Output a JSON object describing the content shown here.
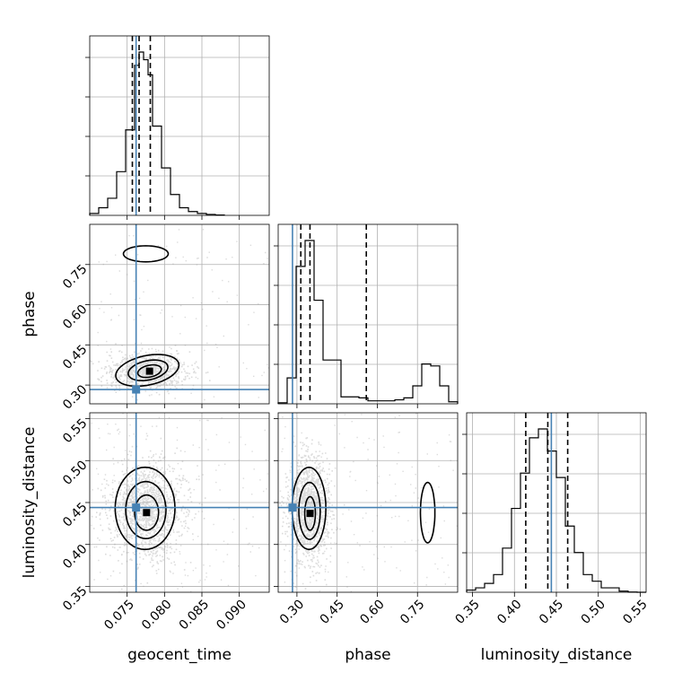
{
  "chart_data": {
    "type": "corner",
    "parameters": [
      "geocent_time",
      "phase",
      "luminosity_distance"
    ],
    "axis_labels": {
      "geocent_time": "geocent_time",
      "phase": "phase",
      "luminosity_distance": "luminosity_distance"
    },
    "ranges": {
      "geocent_time": [
        0.07,
        0.094
      ],
      "phase": [
        0.23,
        0.9
      ],
      "luminosity_distance": [
        0.343,
        0.557
      ]
    },
    "ticks": {
      "geocent_time": [
        0.075,
        0.08,
        0.085,
        0.09
      ],
      "phase": [
        0.3,
        0.45,
        0.6,
        0.75
      ],
      "luminosity_distance": [
        0.35,
        0.4,
        0.45,
        0.5,
        0.55
      ]
    },
    "tick_labels": {
      "geocent_time": [
        "0.075",
        "0.080",
        "0.085",
        "0.090"
      ],
      "phase": [
        "0.30",
        "0.45",
        "0.60",
        "0.75"
      ],
      "luminosity_distance": [
        "0.35",
        "0.40",
        "0.45",
        "0.50",
        "0.55"
      ]
    },
    "truths": {
      "geocent_time": 0.0762,
      "phase": 0.2834,
      "luminosity_distance": 0.444
    },
    "quantiles": {
      "geocent_time": [
        0.0757,
        0.0766,
        0.0781
      ],
      "phase": [
        0.3145,
        0.3487,
        0.559
      ],
      "luminosity_distance": [
        0.4135,
        0.4398,
        0.4635
      ]
    },
    "histograms": {
      "geocent_time": {
        "bin_edges": [
          0.07,
          0.0712,
          0.0724,
          0.0736,
          0.0748,
          0.076,
          0.0766,
          0.0772,
          0.0778,
          0.0784,
          0.0796,
          0.0808,
          0.082,
          0.0832,
          0.0844,
          0.0856,
          0.0868,
          0.088
        ],
        "counts": [
          0.01,
          0.04,
          0.09,
          0.23,
          0.45,
          0.79,
          0.86,
          0.82,
          0.74,
          0.47,
          0.25,
          0.11,
          0.04,
          0.02,
          0.01,
          0.005,
          0.002
        ]
      },
      "phase": {
        "bin_edges": [
          0.23,
          0.2635,
          0.297,
          0.3305,
          0.364,
          0.3975,
          0.431,
          0.4645,
          0.498,
          0.5315,
          0.565,
          0.5985,
          0.632,
          0.6655,
          0.699,
          0.7325,
          0.766,
          0.7995,
          0.833,
          0.8665,
          0.9
        ],
        "counts": [
          0.005,
          0.13,
          0.69,
          0.82,
          0.52,
          0.22,
          0.22,
          0.035,
          0.035,
          0.03,
          0.015,
          0.015,
          0.015,
          0.02,
          0.03,
          0.09,
          0.2,
          0.19,
          0.09,
          0.01
        ]
      },
      "luminosity_distance": {
        "bin_edges": [
          0.343,
          0.3537,
          0.3644,
          0.3751,
          0.3858,
          0.3965,
          0.4072,
          0.4179,
          0.4286,
          0.4393,
          0.45,
          0.4607,
          0.4714,
          0.4821,
          0.4928,
          0.5035,
          0.5142,
          0.5249,
          0.5356,
          0.5463,
          0.557
        ],
        "counts": [
          0.01,
          0.02,
          0.04,
          0.08,
          0.2,
          0.38,
          0.54,
          0.7,
          0.74,
          0.64,
          0.52,
          0.3,
          0.18,
          0.08,
          0.05,
          0.02,
          0.02,
          0.005,
          0.001,
          0.0
        ]
      }
    },
    "contours_2d": {
      "geocent_time__phase": [
        {
          "cx": 0.0777,
          "cy": 0.355,
          "rx": 0.0043,
          "ry": 0.055,
          "rot": -12
        },
        {
          "cx": 0.0778,
          "cy": 0.355,
          "rx": 0.0027,
          "ry": 0.036,
          "rot": -12
        },
        {
          "cx": 0.078,
          "cy": 0.352,
          "rx": 0.0016,
          "ry": 0.022,
          "rot": -12
        },
        {
          "cx": 0.0775,
          "cy": 0.79,
          "rx": 0.003,
          "ry": 0.03,
          "rot": 0
        }
      ],
      "geocent_time__luminosity_distance": [
        {
          "cx": 0.0774,
          "cy": 0.443,
          "rx": 0.004,
          "ry": 0.049
        },
        {
          "cx": 0.0775,
          "cy": 0.441,
          "rx": 0.0027,
          "ry": 0.034
        },
        {
          "cx": 0.0776,
          "cy": 0.438,
          "rx": 0.0016,
          "ry": 0.021
        }
      ],
      "phase__luminosity_distance": [
        {
          "cx": 0.345,
          "cy": 0.443,
          "rx": 0.063,
          "ry": 0.049
        },
        {
          "cx": 0.347,
          "cy": 0.44,
          "rx": 0.04,
          "ry": 0.034
        },
        {
          "cx": 0.349,
          "cy": 0.437,
          "rx": 0.02,
          "ry": 0.02
        },
        {
          "cx": 0.788,
          "cy": 0.438,
          "rx": 0.027,
          "ry": 0.036
        }
      ]
    },
    "grid": true,
    "colors": {
      "truth": "#4682b4",
      "scatter": "#9a9a9a",
      "hist": "#000000",
      "grid": "#b0b0b0"
    }
  }
}
